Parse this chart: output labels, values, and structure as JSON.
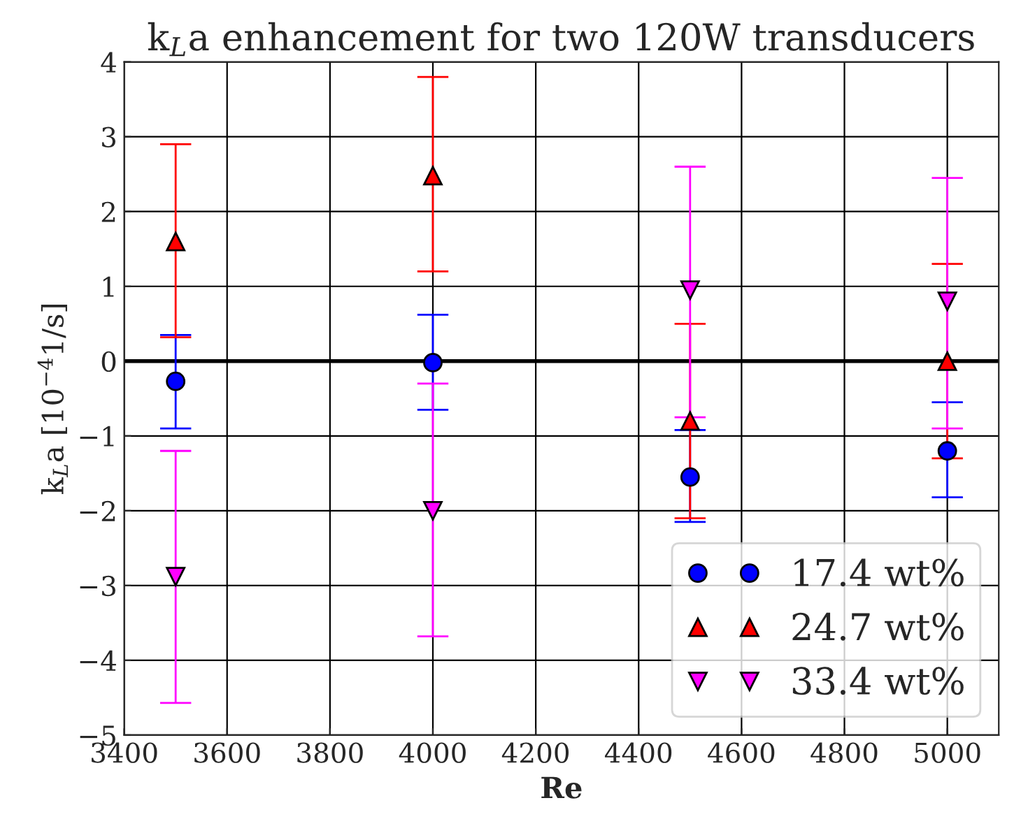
{
  "chart_data": {
    "type": "scatter",
    "title": "k$_{L}$a enhancement for two 120W transducers",
    "xlabel": "Re",
    "ylabel": "k$_{L}$a [10$^{−4}$1/s]",
    "x": [
      3500,
      4000,
      4500,
      5000
    ],
    "series": [
      {
        "name": "17.4 wt%",
        "color": "#0000ff",
        "marker": "circle",
        "values": [
          -0.27,
          -0.02,
          -1.55,
          -1.2
        ],
        "errors": [
          [
            -0.9,
            0.35
          ],
          [
            -0.65,
            0.62
          ],
          [
            -2.15,
            -0.92
          ],
          [
            -1.82,
            -0.55
          ]
        ]
      },
      {
        "name": "24.7 wt%",
        "color": "#ff0000",
        "marker": "triangle",
        "values": [
          1.6,
          2.48,
          -0.8,
          0.0
        ],
        "errors": [
          [
            0.32,
            2.9
          ],
          [
            1.2,
            3.8
          ],
          [
            -2.1,
            0.5
          ],
          [
            -1.3,
            1.3
          ]
        ]
      },
      {
        "name": "33.4 wt%",
        "color": "#ff00ff",
        "marker": "triangle_down",
        "values": [
          -2.88,
          -2.0,
          0.95,
          0.8
        ],
        "errors": [
          [
            -4.57,
            -1.2
          ],
          [
            -3.68,
            -0.3
          ],
          [
            -0.75,
            2.6
          ],
          [
            -0.9,
            2.45
          ]
        ]
      }
    ],
    "xlim": [
      3400,
      5100
    ],
    "xticks": [
      3400,
      3600,
      3800,
      4000,
      4200,
      4400,
      4600,
      4800,
      5000
    ],
    "ylim": [
      -5,
      4
    ],
    "yticks": [
      {
        "value": -5,
        "label": "−5"
      },
      {
        "value": -4,
        "label": "−4"
      },
      {
        "value": -3,
        "label": "−3"
      },
      {
        "value": -2,
        "label": "−2"
      },
      {
        "value": -1,
        "label": "−1"
      },
      0,
      1,
      2,
      3,
      4
    ],
    "ref_lines": [
      {
        "axis": "y",
        "value": 0,
        "color": "#000000"
      }
    ],
    "grid": true,
    "legend": "bottom right"
  }
}
